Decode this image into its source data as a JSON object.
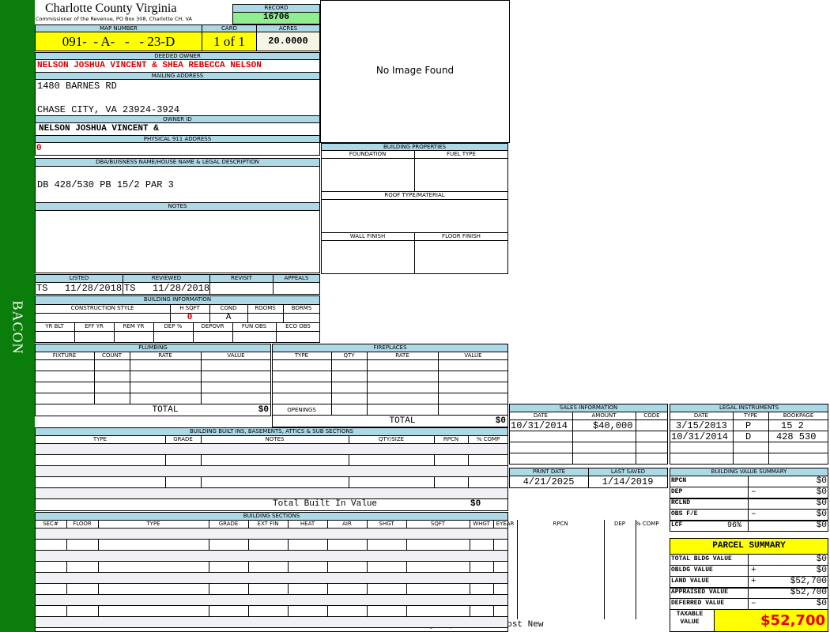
{
  "sidebar": {
    "label": "BACON",
    "color": "#0a7d0a"
  },
  "header": {
    "title": "Charlotte County Virginia",
    "subtitle": "Commissioner of the Revenue, PO Box 308, Charlotte CH, VA"
  },
  "record": {
    "label": "RECORD",
    "value": "16706"
  },
  "map_number": {
    "label": "MAP NUMBER",
    "value": "091-  - A-   -   - 23-D"
  },
  "card": {
    "label": "CARD",
    "value": "1 of 1"
  },
  "acres": {
    "label": "ACRES",
    "value": "20.0000"
  },
  "image": {
    "text": "No Image Found"
  },
  "deeded_owner": {
    "label": "DEEDED OWNER",
    "value": "NELSON JOSHUA VINCENT & SHEA REBECCA NELSON"
  },
  "mailing_address": {
    "label": "MAILING ADDRESS",
    "line1": "1480 BARNES RD",
    "line2": "CHASE CITY, VA 23924-3924"
  },
  "owner_id": {
    "label": "OWNER ID",
    "value": "NELSON JOSHUA VINCENT &"
  },
  "physical_address": {
    "label": "PHYSICAL 911 ADDRESS",
    "value": "0"
  },
  "legal": {
    "label": "DBA/BUISNESS NAME/HOUSE NAME & LEGAL DESCRIPTION",
    "value": "DB 428/530 PB 15/2 PAR 3"
  },
  "notes": {
    "label": "NOTES"
  },
  "building_properties": {
    "label": "BUILDING PROPERTIES",
    "foundation": "FOUNDATION",
    "fuel_type": "FUEL TYPE",
    "roof": "ROOF TYPE/MATERIAL",
    "wall": "WALL FINISH",
    "floor": "FLOOR FINISH"
  },
  "review": {
    "listed_label": "LISTED",
    "listed": "TS   11/28/2018",
    "reviewed_label": "REVIEWED",
    "reviewed": "TS   11/28/2018",
    "revisit_label": "REVISIT",
    "appeals_label": "APPEALS"
  },
  "building_info": {
    "label": "BUILDING INFORMATION",
    "construction_style": "CONSTRUCTION STYLE",
    "hsqft": "H SQFT",
    "hsqft_value": "0",
    "cond": "COND",
    "cond_value": "A",
    "rooms": "ROOMS",
    "bdrms": "BDRMS",
    "row2": [
      "YR BLT",
      "EFF YR",
      "REM YR",
      "DEP %",
      "DEPOVR",
      "FUN OBS",
      "ECO OBS"
    ]
  },
  "plumbing": {
    "label": "PLUMBING",
    "columns": [
      "FIXTURE",
      "COUNT",
      "RATE",
      "VALUE"
    ],
    "total_label": "TOTAL",
    "total": "$0"
  },
  "fireplaces": {
    "label": "FIREPLACES",
    "columns": [
      "TYPE",
      "QTY",
      "RATE",
      "VALUE"
    ],
    "openings_label": "OPENINGS",
    "total_label": "TOTAL",
    "total": "$0"
  },
  "built_ins": {
    "label": "BUILDING BUILT INS, BASEMENTS, ATTICS & SUB SECTIONS",
    "columns": [
      "TYPE",
      "GRADE",
      "NOTES",
      "QTY/SIZE",
      "RPCN",
      "% COMP"
    ],
    "total_label": "Total Built In Value",
    "total": "$0"
  },
  "sections": {
    "label": "BUILDING SECTIONS",
    "columns": [
      "SEC#",
      "FLOOR",
      "TYPE",
      "GRADE",
      "EXT FIN",
      "HEAT",
      "AIR",
      "SHGT",
      "SQFT",
      "WHGT",
      "EYEAR",
      "RPCN",
      "DEP",
      "% COMP"
    ],
    "footer": "Building Replacement Cost New"
  },
  "sales": {
    "label": "SALES INFORMATION",
    "columns": [
      "DATE",
      "AMOUNT",
      "CODE"
    ],
    "rows": [
      {
        "date": "10/31/2014",
        "amount": "$40,000",
        "code": ""
      }
    ]
  },
  "legal_instruments": {
    "label": "LEGAL INSTRUMENTS",
    "columns": [
      "DATE",
      "TYPE",
      "BOOKPAGE"
    ],
    "rows": [
      {
        "date": "3/15/2013",
        "type": "P",
        "bookpage": "15 2"
      },
      {
        "date": "10/31/2014",
        "type": "D",
        "bookpage": "428 530"
      }
    ]
  },
  "dates": {
    "print_label": "PRINT DATE",
    "print": "4/21/2025",
    "saved_label": "LAST SAVED",
    "saved": "1/14/2019"
  },
  "bvs": {
    "label": "BUILDING VALUE SUMMARY",
    "rows": [
      {
        "label": "RPCN",
        "op": "",
        "value": "$0"
      },
      {
        "label": "DEP",
        "op": "–",
        "value": "$0"
      },
      {
        "label": "RCLND",
        "op": "",
        "value": "$0"
      },
      {
        "label": "OBS F/E",
        "op": "–",
        "value": "$0"
      },
      {
        "label": "LCF",
        "pct": "96%",
        "op": "",
        "value": "$0"
      }
    ]
  },
  "parcel": {
    "label": "PARCEL SUMMARY",
    "rows": [
      {
        "label": "TOTAL BLDG VALUE",
        "op": "",
        "value": "$0"
      },
      {
        "label": "OBLDG VALUE",
        "op": "+",
        "value": "$0"
      },
      {
        "label": "LAND VALUE",
        "op": "+",
        "value": "$52,700"
      },
      {
        "label": "APPRAISED VALUE",
        "op": "",
        "value": "$52,700"
      },
      {
        "label": "DEFERRED VALUE",
        "op": "–",
        "value": "$0"
      }
    ],
    "taxable_label": "TAXABLE VALUE",
    "taxable": "$52,700"
  }
}
